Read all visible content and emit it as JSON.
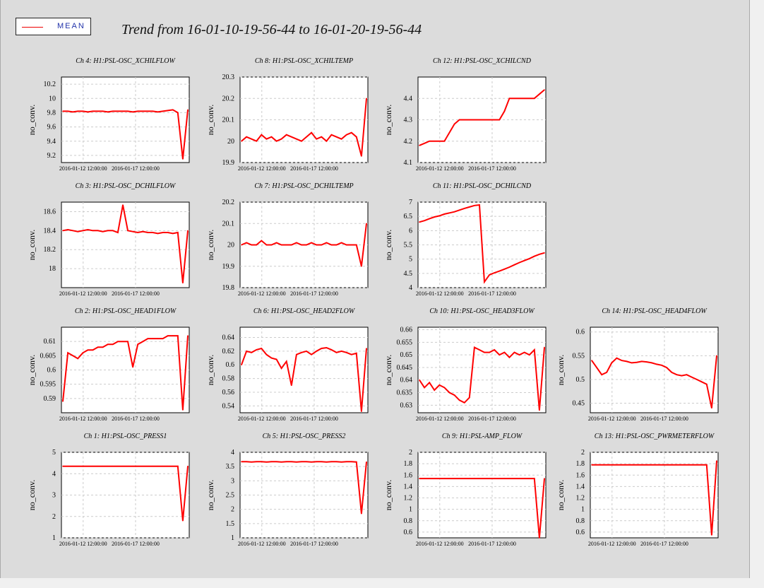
{
  "title": "Trend from 16-01-10-19-56-44 to 16-01-20-19-56-44",
  "legend": {
    "label": "MEAN",
    "color": "#ff0000"
  },
  "chart_data": [
    {
      "type": "line",
      "title": "Ch 4: H1:PSL-OSC_XCHILFLOW",
      "ylabel": "no_conv.",
      "ylim": [
        9.1,
        10.3
      ],
      "yticks": [
        "9.2",
        "9.4",
        "9.6",
        "9.8",
        "10",
        "10.2"
      ],
      "xticks": [
        "2016-01-12 12:00:00",
        "2016-01-17 12:00:00"
      ],
      "series": [
        {
          "values": [
            9.82,
            9.82,
            9.81,
            9.82,
            9.82,
            9.81,
            9.82,
            9.82,
            9.82,
            9.81,
            9.82,
            9.82,
            9.82,
            9.82,
            9.81,
            9.82,
            9.82,
            9.82,
            9.82,
            9.81,
            9.82,
            9.83,
            9.84,
            9.8,
            9.15,
            9.84
          ]
        }
      ]
    },
    {
      "type": "line",
      "title": "Ch 8: H1:PSL-OSC_XCHILTEMP",
      "ylabel": "no_conv.",
      "ylim": [
        19.9,
        20.3
      ],
      "yticks": [
        "19.9",
        "20",
        "20.1",
        "20.2",
        "20.3"
      ],
      "xticks": [
        "2016-01-12 12:00:00",
        "2016-01-17 12:00:00"
      ],
      "series": [
        {
          "values": [
            20.0,
            20.02,
            20.01,
            20.0,
            20.03,
            20.01,
            20.02,
            20.0,
            20.01,
            20.03,
            20.02,
            20.01,
            20.0,
            20.02,
            20.04,
            20.01,
            20.02,
            20.0,
            20.03,
            20.02,
            20.01,
            20.03,
            20.04,
            20.02,
            19.93,
            20.2
          ]
        }
      ]
    },
    {
      "type": "line",
      "title": "Ch 12: H1:PSL-OSC_XCHILCND",
      "ylabel": "no_conv.",
      "ylim": [
        4.1,
        4.5
      ],
      "yticks": [
        "4.1",
        "4.2",
        "4.3",
        "4.4"
      ],
      "xticks": [
        "2016-01-12 12:00:00",
        "2016-01-17 12:00:00"
      ],
      "series": [
        {
          "values": [
            4.18,
            4.19,
            4.2,
            4.2,
            4.2,
            4.2,
            4.24,
            4.28,
            4.3,
            4.3,
            4.3,
            4.3,
            4.3,
            4.3,
            4.3,
            4.3,
            4.3,
            4.34,
            4.4,
            4.4,
            4.4,
            4.4,
            4.4,
            4.4,
            4.42,
            4.44
          ]
        }
      ]
    },
    {
      "type": "line",
      "title": "Ch 3: H1:PSL-OSC_DCHILFLOW",
      "ylabel": "no_conv.",
      "ylim": [
        17.8,
        18.7
      ],
      "yticks": [
        "18",
        "18.2",
        "18.4",
        "18.6"
      ],
      "xticks": [
        "2016-01-12 12:00:00",
        "2016-01-17 12:00:00"
      ],
      "series": [
        {
          "values": [
            18.4,
            18.41,
            18.4,
            18.39,
            18.4,
            18.41,
            18.4,
            18.4,
            18.39,
            18.4,
            18.4,
            18.38,
            18.67,
            18.4,
            18.39,
            18.38,
            18.39,
            18.38,
            18.38,
            18.37,
            18.38,
            18.38,
            18.37,
            18.38,
            17.85,
            18.4
          ]
        }
      ]
    },
    {
      "type": "line",
      "title": "Ch 7: H1:PSL-OSC_DCHILTEMP",
      "ylabel": "no_conv.",
      "ylim": [
        19.8,
        20.2
      ],
      "yticks": [
        "19.8",
        "19.9",
        "20",
        "20.1",
        "20.2"
      ],
      "xticks": [
        "2016-01-12 12:00:00",
        "2016-01-17 12:00:00"
      ],
      "series": [
        {
          "values": [
            20.0,
            20.01,
            20.0,
            20.0,
            20.02,
            20.0,
            20.0,
            20.01,
            20.0,
            20.0,
            20.0,
            20.01,
            20.0,
            20.0,
            20.01,
            20.0,
            20.0,
            20.01,
            20.0,
            20.0,
            20.01,
            20.0,
            20.0,
            20.0,
            19.9,
            20.1
          ]
        }
      ]
    },
    {
      "type": "line",
      "title": "Ch 11: H1:PSL-OSC_DCHILCND",
      "ylabel": "no_conv.",
      "ylim": [
        4,
        7
      ],
      "yticks": [
        "4",
        "4.5",
        "5",
        "5.5",
        "6",
        "6.5",
        "7"
      ],
      "xticks": [
        "2016-01-12 12:00:00",
        "2016-01-17 12:00:00"
      ],
      "series": [
        {
          "values": [
            6.3,
            6.35,
            6.42,
            6.48,
            6.52,
            6.58,
            6.62,
            6.66,
            6.72,
            6.78,
            6.83,
            6.88,
            6.9,
            4.2,
            4.45,
            4.52,
            4.58,
            4.65,
            4.72,
            4.8,
            4.88,
            4.95,
            5.02,
            5.1,
            5.17,
            5.22
          ]
        }
      ]
    },
    {
      "type": "line",
      "title": "Ch 2: H1:PSL-OSC_HEAD1FLOW",
      "ylabel": "no_conv.",
      "ylim": [
        0.585,
        0.615
      ],
      "yticks": [
        "0.59",
        "0.595",
        "0.6",
        "0.605",
        "0.61"
      ],
      "xticks": [
        "2016-01-12 12:00:00",
        "2016-01-17 12:00:00"
      ],
      "series": [
        {
          "values": [
            0.589,
            0.606,
            0.605,
            0.604,
            0.606,
            0.607,
            0.607,
            0.608,
            0.608,
            0.609,
            0.609,
            0.61,
            0.61,
            0.61,
            0.601,
            0.609,
            0.61,
            0.611,
            0.611,
            0.611,
            0.611,
            0.612,
            0.612,
            0.612,
            0.586,
            0.612
          ]
        }
      ]
    },
    {
      "type": "line",
      "title": "Ch 6: H1:PSL-OSC_HEAD2FLOW",
      "ylabel": "no_conv.",
      "ylim": [
        0.53,
        0.655
      ],
      "yticks": [
        "0.54",
        "0.56",
        "0.58",
        "0.6",
        "0.62",
        "0.64"
      ],
      "xticks": [
        "2016-01-12 12:00:00",
        "2016-01-17 12:00:00"
      ],
      "series": [
        {
          "values": [
            0.6,
            0.62,
            0.618,
            0.622,
            0.624,
            0.615,
            0.61,
            0.608,
            0.595,
            0.605,
            0.57,
            0.615,
            0.618,
            0.62,
            0.615,
            0.62,
            0.624,
            0.625,
            0.622,
            0.618,
            0.62,
            0.618,
            0.615,
            0.617,
            0.532,
            0.624
          ]
        }
      ]
    },
    {
      "type": "line",
      "title": "Ch 10: H1:PSL-OSC_HEAD3FLOW",
      "ylabel": "no_conv.",
      "ylim": [
        0.627,
        0.661
      ],
      "yticks": [
        "0.63",
        "0.635",
        "0.64",
        "0.645",
        "0.65",
        "0.655",
        "0.66"
      ],
      "xticks": [
        "2016-01-12 12:00:00",
        "2016-01-17 12:00:00"
      ],
      "series": [
        {
          "values": [
            0.64,
            0.637,
            0.639,
            0.636,
            0.638,
            0.637,
            0.635,
            0.634,
            0.632,
            0.631,
            0.633,
            0.653,
            0.652,
            0.651,
            0.651,
            0.652,
            0.65,
            0.651,
            0.649,
            0.651,
            0.65,
            0.651,
            0.65,
            0.652,
            0.628,
            0.653
          ]
        }
      ]
    },
    {
      "type": "line",
      "title": "Ch 14: H1:PSL-OSC_HEAD4FLOW",
      "ylabel": "no_conv.",
      "ylim": [
        0.43,
        0.61
      ],
      "yticks": [
        "0.45",
        "0.5",
        "0.55",
        "0.6"
      ],
      "xticks": [
        "2016-01-12 12:00:00",
        "2016-01-17 12:00:00"
      ],
      "series": [
        {
          "values": [
            0.54,
            0.525,
            0.51,
            0.515,
            0.535,
            0.545,
            0.54,
            0.538,
            0.535,
            0.536,
            0.538,
            0.537,
            0.535,
            0.532,
            0.53,
            0.525,
            0.515,
            0.51,
            0.508,
            0.51,
            0.505,
            0.5,
            0.495,
            0.49,
            0.44,
            0.55
          ]
        }
      ]
    },
    {
      "type": "line",
      "title": "Ch 1: H1:PSL-OSC_PRESS1",
      "ylabel": "no_conv.",
      "ylim": [
        1,
        5
      ],
      "yticks": [
        "1",
        "2",
        "3",
        "4",
        "5"
      ],
      "xticks": [
        "2016-01-12 12:00:00",
        "2016-01-17 12:00:00"
      ],
      "series": [
        {
          "values": [
            4.35,
            4.35,
            4.35,
            4.35,
            4.35,
            4.35,
            4.35,
            4.35,
            4.35,
            4.35,
            4.35,
            4.35,
            4.35,
            4.35,
            4.35,
            4.35,
            4.35,
            4.35,
            4.35,
            4.35,
            4.35,
            4.35,
            4.35,
            4.35,
            1.8,
            4.35
          ]
        }
      ]
    },
    {
      "type": "line",
      "title": "Ch 5: H1:PSL-OSC_PRESS2",
      "ylabel": "no_conv.",
      "ylim": [
        1,
        4
      ],
      "yticks": [
        "1",
        "1.5",
        "2",
        "2.5",
        "3",
        "3.5",
        "4"
      ],
      "xticks": [
        "2016-01-12 12:00:00",
        "2016-01-17 12:00:00"
      ],
      "series": [
        {
          "values": [
            3.67,
            3.67,
            3.66,
            3.67,
            3.67,
            3.66,
            3.67,
            3.67,
            3.66,
            3.67,
            3.67,
            3.66,
            3.67,
            3.67,
            3.66,
            3.67,
            3.67,
            3.66,
            3.67,
            3.67,
            3.66,
            3.67,
            3.67,
            3.66,
            1.85,
            3.66
          ]
        }
      ]
    },
    {
      "type": "line",
      "title": "Ch 9: H1:PSL-AMP_FLOW",
      "ylabel": "no_conv.",
      "ylim": [
        0.5,
        2
      ],
      "yticks": [
        "0.6",
        "0.8",
        "1",
        "1.2",
        "1.4",
        "1.6",
        "1.8",
        "2"
      ],
      "xticks": [
        "2016-01-12 12:00:00",
        "2016-01-17 12:00:00"
      ],
      "series": [
        {
          "values": [
            1.54,
            1.54,
            1.54,
            1.54,
            1.54,
            1.54,
            1.54,
            1.54,
            1.54,
            1.54,
            1.54,
            1.54,
            1.54,
            1.54,
            1.54,
            1.54,
            1.54,
            1.54,
            1.54,
            1.54,
            1.54,
            1.54,
            1.54,
            1.54,
            0.5,
            1.54
          ]
        }
      ]
    },
    {
      "type": "line",
      "title": "Ch 13: H1:PSL-OSC_PWRMETERFLOW",
      "ylabel": "no_conv.",
      "ylim": [
        0.5,
        2
      ],
      "yticks": [
        "0.6",
        "0.8",
        "1",
        "1.2",
        "1.4",
        "1.6",
        "1.8",
        "2"
      ],
      "xticks": [
        "2016-01-12 12:00:00",
        "2016-01-17 12:00:00"
      ],
      "series": [
        {
          "values": [
            1.78,
            1.78,
            1.78,
            1.78,
            1.78,
            1.78,
            1.78,
            1.78,
            1.78,
            1.78,
            1.78,
            1.78,
            1.78,
            1.78,
            1.78,
            1.78,
            1.78,
            1.78,
            1.78,
            1.78,
            1.78,
            1.78,
            1.78,
            1.78,
            0.55,
            1.85
          ]
        }
      ]
    }
  ]
}
